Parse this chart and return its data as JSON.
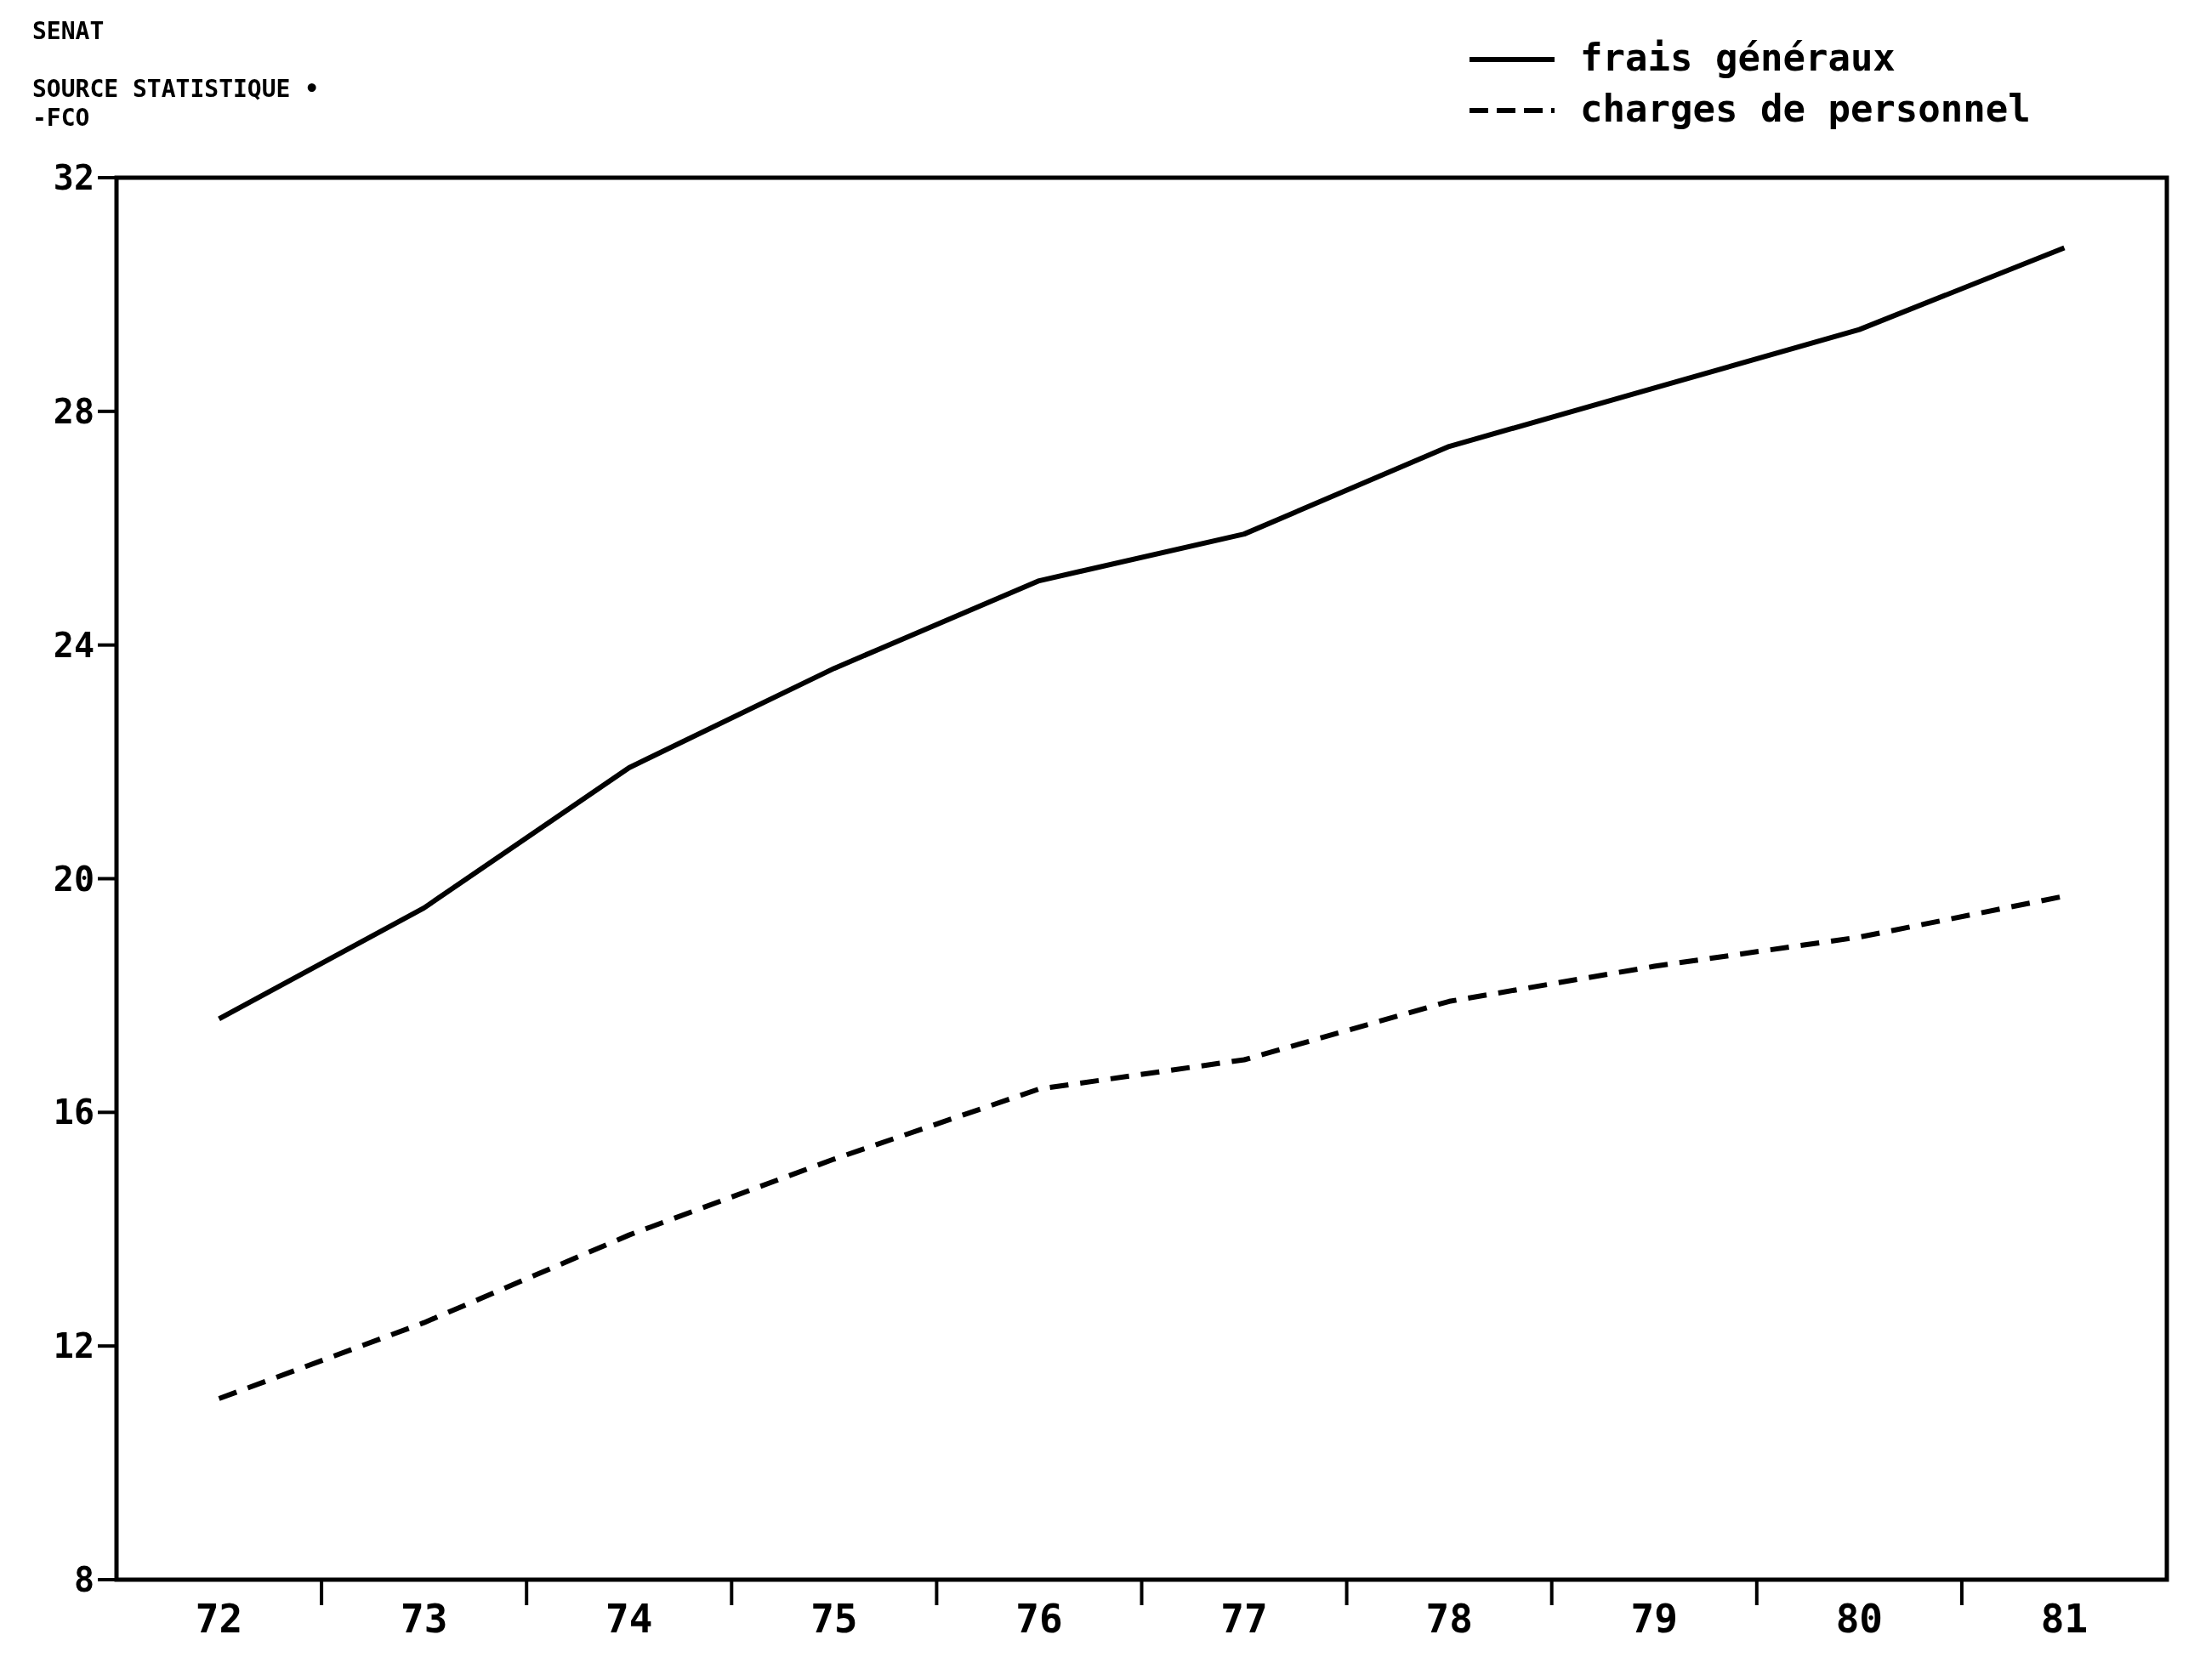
{
  "chart_data": {
    "type": "line",
    "annotations": [
      "SENAT",
      "SOURCE STATISTIQUE •",
      "-FCO"
    ],
    "categories": [
      "72",
      "73",
      "74",
      "75",
      "76",
      "77",
      "78",
      "79",
      "80",
      "81"
    ],
    "series": [
      {
        "name": "frais généraux",
        "color": "#000000",
        "line_style": "solid",
        "values": [
          17.6,
          19.5,
          21.9,
          23.6,
          25.1,
          25.9,
          27.4,
          28.4,
          29.4,
          30.8
        ]
      },
      {
        "name": "charges de personnel",
        "color": "#000000",
        "line_style": "dashed",
        "values": [
          11.1,
          12.4,
          13.9,
          15.2,
          16.4,
          16.9,
          17.9,
          18.5,
          19.0,
          19.7
        ]
      }
    ],
    "ylim": [
      8,
      32
    ],
    "yticks": [
      8,
      12,
      16,
      20,
      24,
      28,
      32
    ],
    "grid": false,
    "legend": "top right",
    "marker": "none"
  }
}
